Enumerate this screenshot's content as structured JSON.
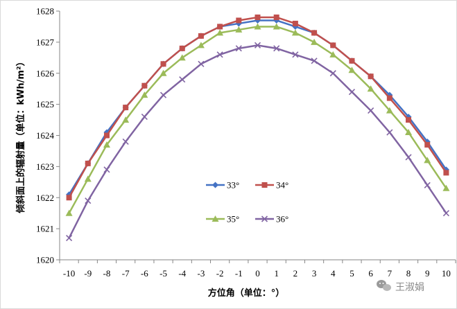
{
  "chart_data": {
    "type": "line",
    "title": "",
    "xlabel": "方位角（单位：°）",
    "ylabel": "倾斜面上的辐射量（单位：kWh/m²）",
    "x": [
      -10,
      -9,
      -8,
      -7,
      -6,
      -5,
      -4,
      -3,
      -2,
      -1,
      0,
      1,
      2,
      3,
      4,
      5,
      6,
      7,
      8,
      9,
      10
    ],
    "ylim": [
      1620,
      1628
    ],
    "yticks": [
      1620,
      1621,
      1622,
      1623,
      1624,
      1625,
      1626,
      1627,
      1628
    ],
    "grid": false,
    "legend_position": "center",
    "series": [
      {
        "name": "33°",
        "color": "#4472C4",
        "marker": "diamond",
        "values": [
          1622.1,
          1623.1,
          1624.1,
          1624.9,
          1625.6,
          1626.3,
          1626.8,
          1627.2,
          1627.5,
          1627.6,
          1627.7,
          1627.7,
          1627.5,
          1627.3,
          1626.9,
          1626.4,
          1625.9,
          1625.3,
          1624.6,
          1623.8,
          1622.9
        ]
      },
      {
        "name": "34°",
        "color": "#C0504D",
        "marker": "square",
        "values": [
          1622.0,
          1623.1,
          1624.0,
          1624.9,
          1625.6,
          1626.3,
          1626.8,
          1627.2,
          1627.5,
          1627.7,
          1627.8,
          1627.8,
          1627.6,
          1627.3,
          1626.9,
          1626.4,
          1625.9,
          1625.2,
          1624.5,
          1623.7,
          1622.8
        ]
      },
      {
        "name": "35°",
        "color": "#9BBB59",
        "marker": "triangle",
        "values": [
          1621.5,
          1622.6,
          1623.7,
          1624.5,
          1625.3,
          1626.0,
          1626.5,
          1626.9,
          1627.3,
          1627.4,
          1627.5,
          1627.5,
          1627.3,
          1627.0,
          1626.6,
          1626.1,
          1625.5,
          1624.8,
          1624.1,
          1623.2,
          1622.3
        ]
      },
      {
        "name": "36°",
        "color": "#8064A2",
        "marker": "x",
        "values": [
          1620.7,
          1621.9,
          1622.9,
          1623.8,
          1624.6,
          1625.3,
          1625.8,
          1626.3,
          1626.6,
          1626.8,
          1626.9,
          1626.8,
          1626.6,
          1626.4,
          1626.0,
          1625.4,
          1624.8,
          1624.1,
          1623.3,
          1622.4,
          1621.5
        ]
      }
    ]
  },
  "watermark": {
    "text": "王淑娟",
    "icon": "wechat-icon"
  }
}
